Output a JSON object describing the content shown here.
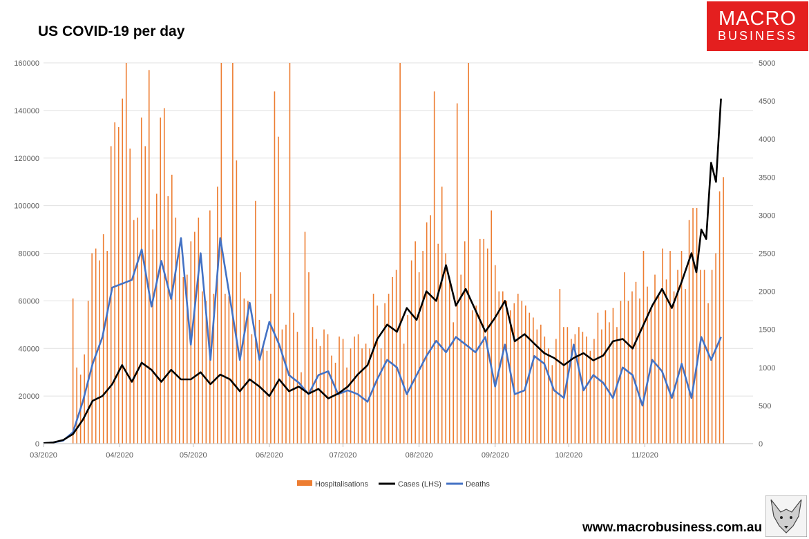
{
  "brand": {
    "line1": "MACRO",
    "line2": "BUSINESS",
    "color": "#e41f1f"
  },
  "website": "www.macrobusiness.com.au",
  "chart_data": {
    "type": "bar+line",
    "title": "US COVID-19 per day",
    "x_labels": [
      "03/2020",
      "04/2020",
      "05/2020",
      "06/2020",
      "07/2020",
      "08/2020",
      "09/2020",
      "10/2020",
      "11/2020"
    ],
    "y_left": {
      "min": 0,
      "max": 160000,
      "ticks": [
        0,
        20000,
        40000,
        60000,
        80000,
        100000,
        120000,
        140000,
        160000
      ]
    },
    "y_right": {
      "min": 0,
      "max": 5000,
      "ticks": [
        0,
        500,
        1000,
        1500,
        2000,
        2500,
        3000,
        3500,
        4000,
        4500,
        5000
      ]
    },
    "legend": {
      "position": "bottom",
      "entries": [
        "Hospitalisations",
        "Cases (LHS)",
        "Deaths"
      ]
    },
    "colors": {
      "hospitalisations": "#ed7d31",
      "cases": "#000000",
      "deaths": "#4472c4"
    },
    "series": [
      {
        "name": "Cases (LHS)",
        "axis": "left",
        "x_day": [
          0,
          4,
          8,
          12,
          16,
          20,
          24,
          28,
          32,
          36,
          40,
          44,
          48,
          52,
          56,
          60,
          64,
          68,
          72,
          76,
          80,
          84,
          88,
          92,
          96,
          100,
          104,
          108,
          112,
          116,
          120,
          124,
          128,
          132,
          136,
          140,
          144,
          148,
          152,
          156,
          160,
          164,
          168,
          172,
          176,
          180,
          184,
          188,
          192,
          196,
          200,
          204,
          208,
          212,
          216,
          220,
          224,
          228,
          232,
          236,
          240,
          244
        ],
        "values": [
          200,
          500,
          1500,
          4000,
          10000,
          18000,
          20000,
          25000,
          33000,
          26000,
          34000,
          31000,
          26000,
          31000,
          27000,
          27000,
          30000,
          25000,
          29000,
          27000,
          22000,
          27000,
          24000,
          20000,
          27000,
          22000,
          24000,
          21000,
          23000,
          19000,
          21000,
          24000,
          29000,
          33000,
          44000,
          50000,
          47000,
          57000,
          52000,
          64000,
          60000,
          75000,
          58000,
          65000,
          56000,
          47000,
          53000,
          60000,
          43000,
          46000,
          42000,
          38000,
          36000,
          33000,
          36000,
          38000,
          35000,
          37000,
          43000,
          44000,
          40000,
          49000
        ]
      },
      {
        "name": "Cases (LHS) late",
        "axis": "left",
        "x_day": [
          244,
          248,
          252,
          256,
          260,
          264,
          266,
          268,
          270,
          272,
          274,
          276
        ],
        "values": [
          49000,
          58000,
          65000,
          57000,
          68000,
          80000,
          72000,
          90000,
          86000,
          118000,
          110000,
          145000
        ]
      },
      {
        "name": "Deaths",
        "axis": "right",
        "x_day": [
          0,
          4,
          8,
          12,
          16,
          20,
          24,
          28,
          32,
          36,
          40,
          44,
          48,
          52,
          56,
          60,
          64,
          68,
          72,
          76,
          80,
          84,
          88,
          92,
          96,
          100,
          104,
          108,
          112,
          116,
          120,
          124,
          128,
          132,
          136,
          140,
          144,
          148,
          152,
          156,
          160,
          164,
          168,
          172,
          176,
          180,
          184,
          188,
          192,
          196,
          200,
          204,
          208,
          212,
          216,
          220,
          224,
          228,
          232,
          236,
          240,
          244,
          248,
          252,
          256,
          260,
          264,
          268,
          272,
          276
        ],
        "values": [
          5,
          15,
          40,
          150,
          550,
          1050,
          1400,
          2050,
          2100,
          2150,
          2550,
          1800,
          2400,
          1900,
          2700,
          1300,
          2500,
          1100,
          2700,
          1900,
          1100,
          1850,
          1100,
          1600,
          1300,
          900,
          800,
          650,
          900,
          950,
          650,
          700,
          650,
          550,
          850,
          1100,
          1000,
          650,
          900,
          1150,
          1350,
          1200,
          1400,
          1300,
          1200,
          1400,
          750,
          1300,
          650,
          700,
          1150,
          1050,
          700,
          600,
          1300,
          700,
          900,
          800,
          600,
          1000,
          900,
          500,
          1100,
          950,
          600,
          1050,
          600,
          1400,
          1100,
          1400
        ]
      }
    ],
    "hospitalisations_bars_note": "approximate daily bar heights in LHS units",
    "bars": {
      "x_day_start": 12,
      "x_day_end": 277,
      "values": [
        61000,
        32000,
        29000,
        37500,
        60000,
        80000,
        82000,
        77000,
        88000,
        81000,
        125000,
        135000,
        133000,
        145000,
        160000,
        124000,
        94000,
        95000,
        137000,
        125000,
        157000,
        90000,
        105000,
        137000,
        141000,
        104000,
        113000,
        95000,
        82000,
        70000,
        71000,
        85000,
        89000,
        95000,
        64000,
        60000,
        98000,
        63000,
        108000,
        160000,
        63000,
        62000,
        160000,
        119000,
        72000,
        61000,
        60000,
        46000,
        102000,
        52000,
        41000,
        39000,
        63000,
        148000,
        129000,
        48000,
        50000,
        160000,
        55000,
        47000,
        30000,
        89000,
        72000,
        49000,
        44000,
        41000,
        48000,
        46000,
        37000,
        34000,
        45000,
        44000,
        32000,
        40000,
        45000,
        46000,
        40000,
        42000,
        40000,
        63000,
        58000,
        40000,
        59000,
        63000,
        70000,
        73000,
        160000,
        42000,
        54000,
        77000,
        85000,
        72000,
        81000,
        93000,
        96000,
        148000,
        84000,
        108000,
        80000,
        70000,
        51000,
        143000,
        71000,
        85000,
        160000,
        56000,
        58000,
        86000,
        86000,
        82000,
        98000,
        75000,
        64000,
        64000,
        60000,
        56000,
        59000,
        63000,
        60000,
        58000,
        55000,
        53000,
        48000,
        50000,
        45000,
        40000,
        33000,
        44000,
        65000,
        49000,
        49000,
        44000,
        46000,
        49000,
        47000,
        45000,
        39000,
        44000,
        55000,
        48000,
        56000,
        51000,
        57000,
        49000,
        60000,
        72000,
        60000,
        64000,
        68000,
        61000,
        81000,
        66000,
        57000,
        71000,
        62000,
        82000,
        69000,
        81000,
        64000,
        73000,
        81000,
        65000,
        94000,
        99000,
        99000,
        73000,
        73000,
        59000,
        73000,
        80000,
        106000,
        112000
      ]
    }
  }
}
